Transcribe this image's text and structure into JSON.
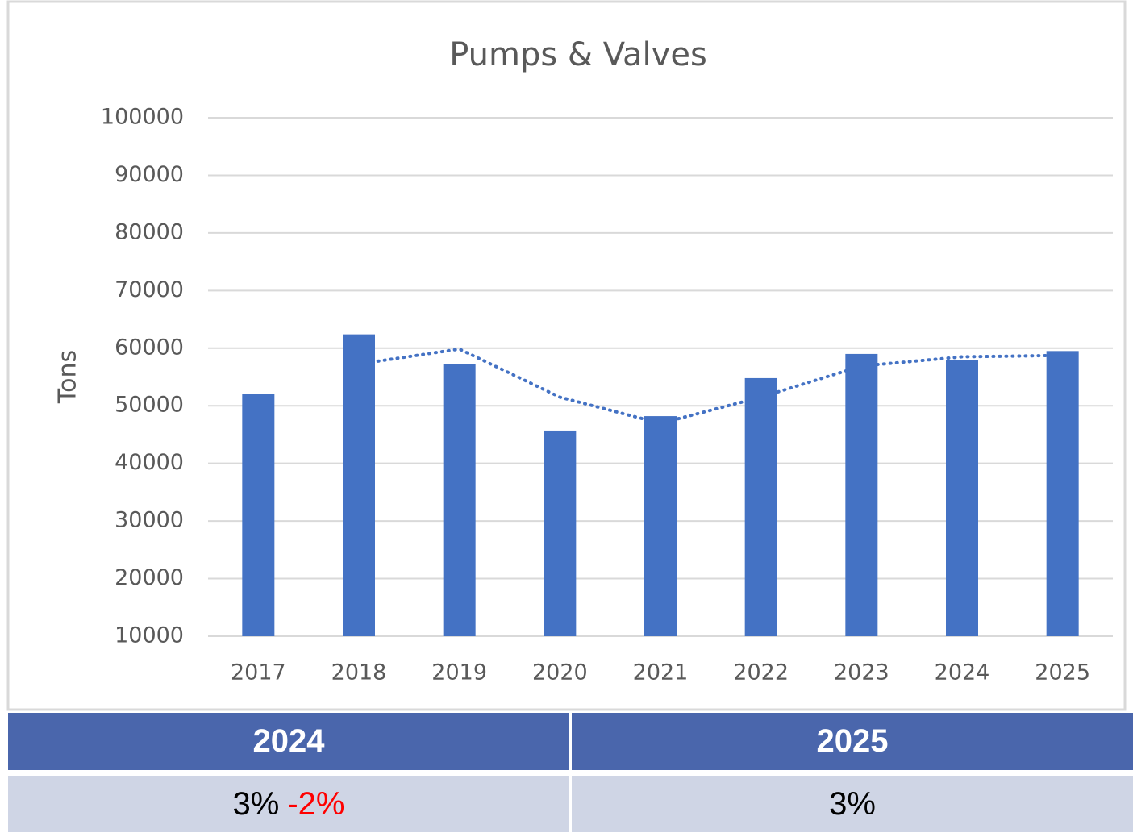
{
  "chart_data": {
    "type": "bar",
    "title": "Pumps & Valves",
    "y_label": "Tons",
    "categories": [
      "2017",
      "2018",
      "2019",
      "2020",
      "2021",
      "2022",
      "2023",
      "2024",
      "2025"
    ],
    "values": [
      52100,
      62400,
      57300,
      45700,
      48200,
      54800,
      59000,
      58000,
      59500
    ],
    "color": "#4472c4",
    "trend": {
      "color": "#4472c4",
      "values": [
        null,
        57250,
        59850,
        51500,
        46950,
        51500,
        56900,
        58500,
        58750
      ]
    },
    "ylim": [
      10000,
      100000
    ],
    "yticks": [
      10000,
      20000,
      30000,
      40000,
      50000,
      60000,
      70000,
      80000,
      90000,
      100000
    ],
    "grid": true
  },
  "table": {
    "header": [
      "2024",
      "2025"
    ],
    "rows": [
      [
        [
          "3%",
          "-2%"
        ],
        "3%"
      ]
    ]
  }
}
